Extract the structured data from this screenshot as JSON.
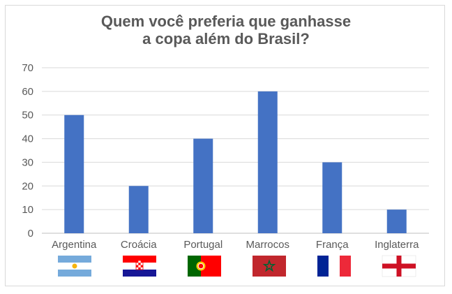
{
  "chart_data": {
    "type": "bar",
    "title_line1": "Quem você preferia que ganhasse",
    "title_line2": "a copa além do Brasil?",
    "categories": [
      "Argentina",
      "Croácia",
      "Portugal",
      "Marrocos",
      "França",
      "Inglaterra"
    ],
    "values": [
      50,
      20,
      40,
      60,
      30,
      10
    ],
    "ylim": [
      0,
      70
    ],
    "yticks": [
      0,
      10,
      20,
      30,
      40,
      50,
      60,
      70
    ],
    "grid": true,
    "bar_color": "#4472c4",
    "flags": [
      "argentina-flag-icon",
      "croatia-flag-icon",
      "portugal-flag-icon",
      "morocco-flag-icon",
      "france-flag-icon",
      "england-flag-icon"
    ]
  }
}
